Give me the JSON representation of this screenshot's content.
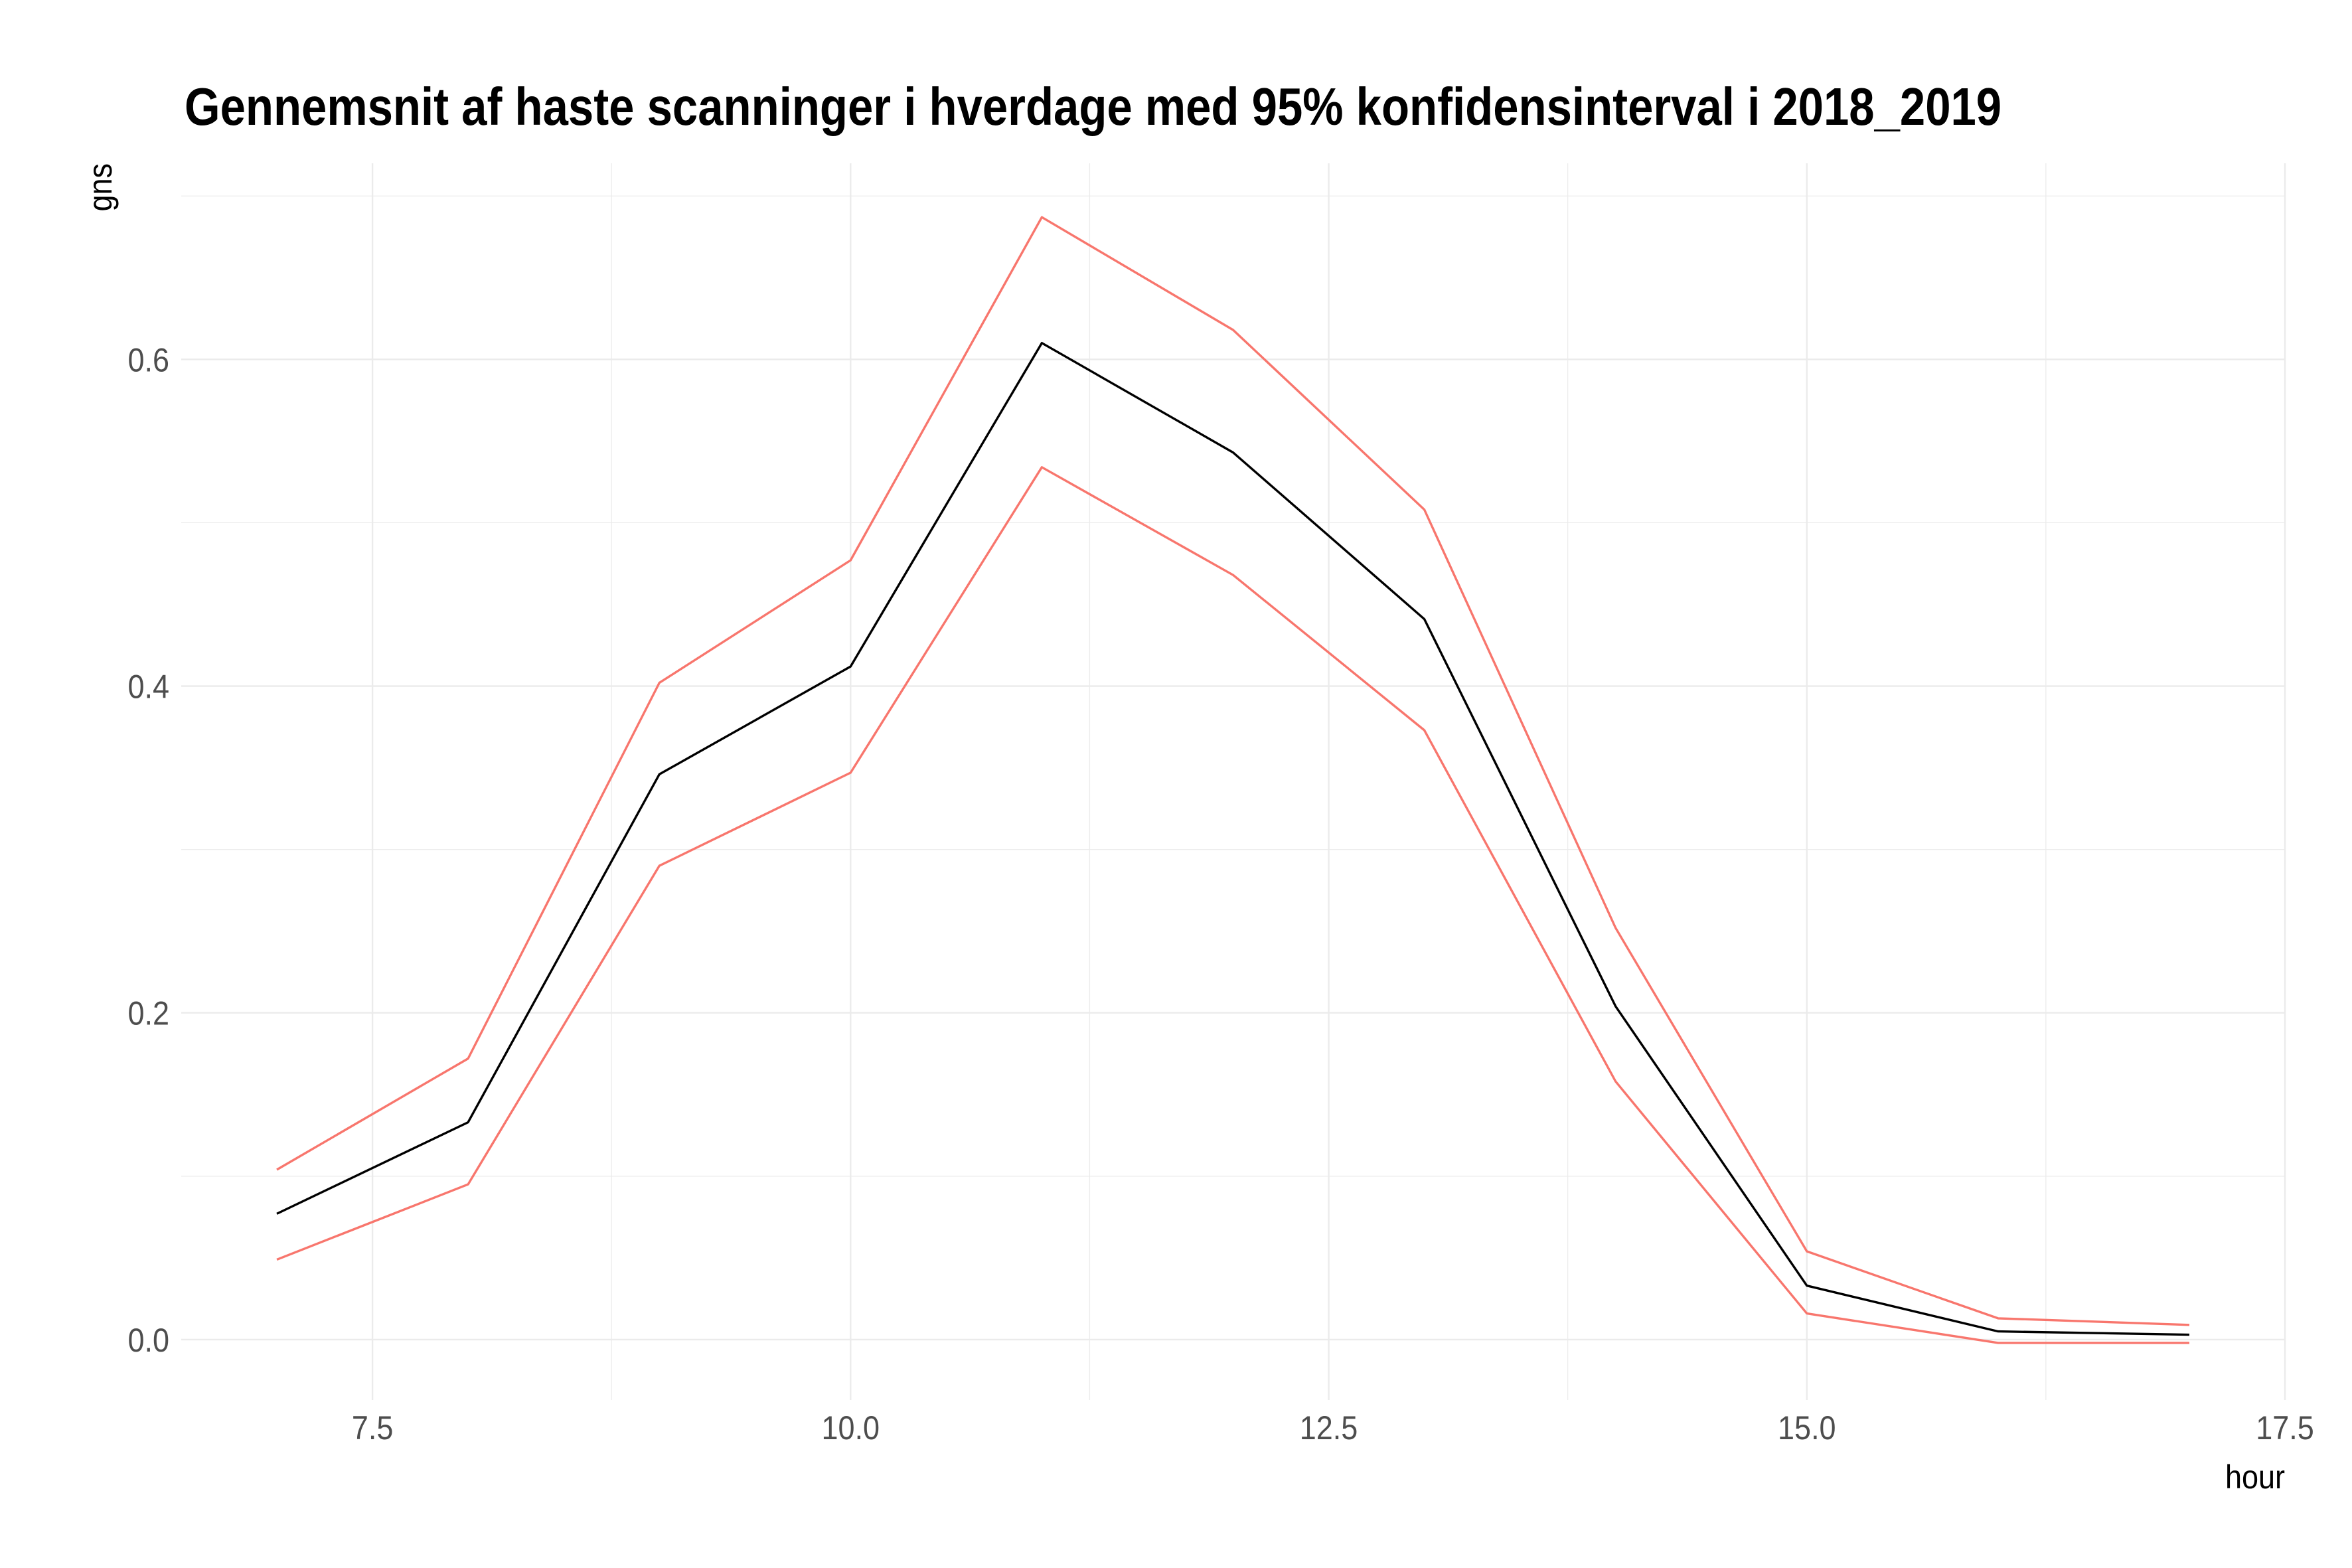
{
  "chart_data": {
    "type": "line",
    "title": "Gennemsnit af haste scanninger i hverdage med 95% konfidensinterval i 2018_2019",
    "xlabel": "hour",
    "ylabel": "gns",
    "x": [
      7,
      8,
      9,
      10,
      11,
      12,
      13,
      14,
      15,
      16,
      17
    ],
    "series": [
      {
        "color": "#000000",
        "values": [
          0.077,
          0.133,
          0.346,
          0.412,
          0.61,
          0.543,
          0.441,
          0.204,
          0.033,
          0.005,
          0.003
        ]
      },
      {
        "color": "#F8766D",
        "values": [
          0.104,
          0.172,
          0.402,
          0.477,
          0.687,
          0.618,
          0.508,
          0.252,
          0.054,
          0.013,
          0.009
        ]
      },
      {
        "color": "#F8766D",
        "values": [
          0.049,
          0.095,
          0.29,
          0.347,
          0.534,
          0.468,
          0.373,
          0.158,
          0.016,
          -0.002,
          -0.002
        ]
      }
    ],
    "xlim": [
      6.5,
      17.5
    ],
    "ylim": [
      -0.037,
      0.72
    ],
    "x_ticks": [
      7.5,
      10.0,
      12.5,
      15.0,
      17.5
    ],
    "x_tick_labels": [
      "7.5",
      "10.0",
      "12.5",
      "15.0",
      "17.5"
    ],
    "x_minor_ticks": [
      8.75,
      11.25,
      13.75,
      16.25
    ],
    "y_ticks": [
      0.0,
      0.2,
      0.4,
      0.6
    ],
    "y_tick_labels": [
      "0.0",
      "0.2",
      "0.4",
      "0.6"
    ],
    "y_minor_ticks": [
      0.1,
      0.3,
      0.5,
      0.7
    ],
    "grid": true
  },
  "colors": {
    "background": "#FFFFFF",
    "grid": "#EBEBEB",
    "tick_text": "#4D4D4D"
  }
}
